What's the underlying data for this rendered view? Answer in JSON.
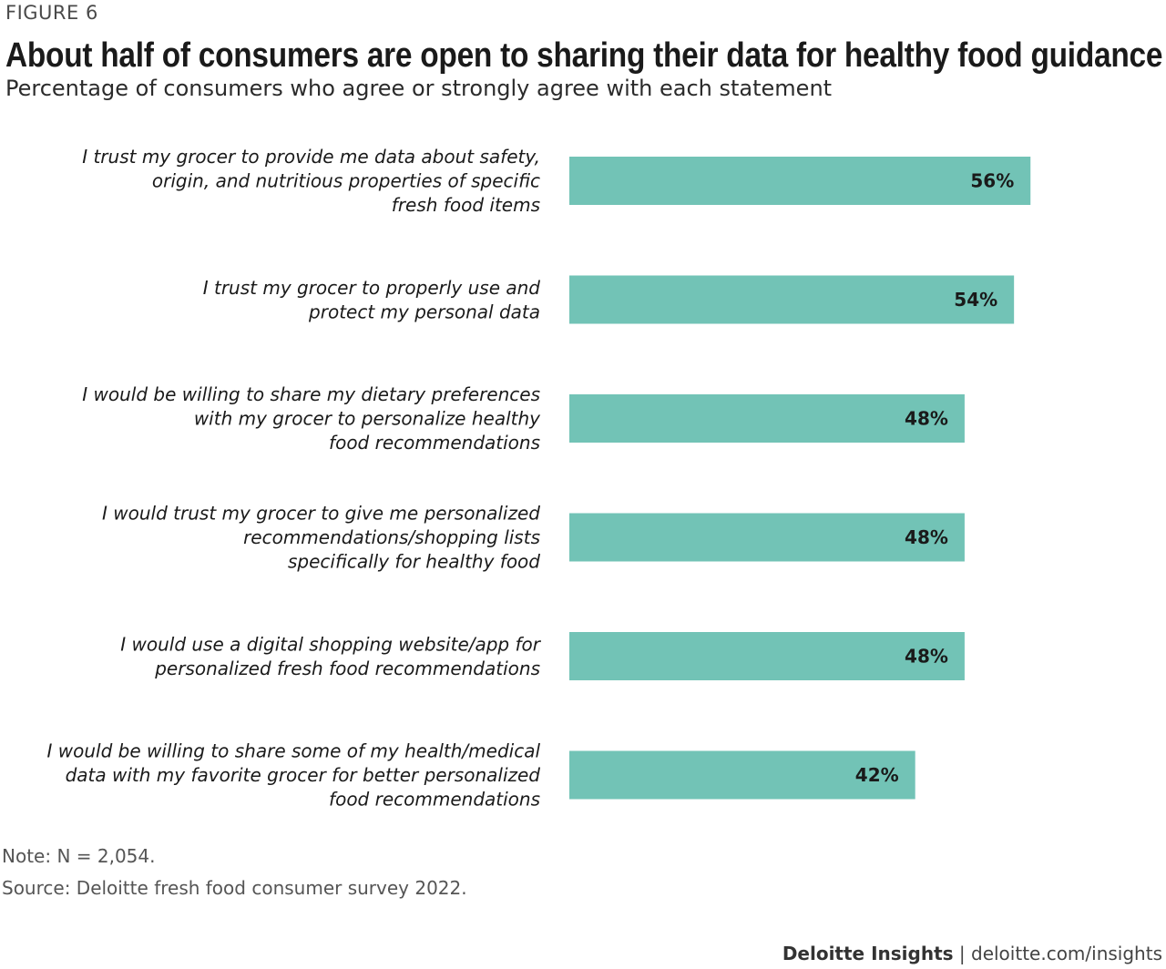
{
  "figure_label": "FIGURE 6",
  "footer": {
    "brand": "Deloitte Insights",
    "separator": " | ",
    "url": "deloitte.com/insights"
  },
  "colors": {
    "bar": "#72c3b6",
    "text": "#1a1a1a"
  },
  "chart_data": {
    "type": "bar",
    "orientation": "horizontal",
    "title": "About half of consumers are open to sharing their data for healthy food guidance",
    "subtitle": "Percentage of consumers who agree or strongly agree with each statement",
    "categories": [
      "I trust my grocer to provide me data about safety, origin, and nutritious properties of specific fresh food items",
      "I trust my grocer to properly use and protect my personal data",
      "I would be willing to share my dietary preferences with my grocer to personalize healthy food recommendations",
      "I would trust my grocer to give me personalized recommendations/shopping lists specifically for healthy food",
      "I would use a digital shopping website/app for personalized fresh food recommendations",
      "I would be willing to share some of my health/medical data with my favorite grocer for better personalized food recommendations"
    ],
    "category_lines": [
      [
        "I trust my grocer to provide me data about safety,",
        "origin, and nutritious properties of specific",
        "fresh food items"
      ],
      [
        "I trust my grocer to properly use and",
        "protect my personal data"
      ],
      [
        "I would be willing to share my dietary preferences",
        "with my grocer to personalize healthy",
        "food recommendations"
      ],
      [
        "I would trust my grocer to give me personalized",
        "recommendations/shopping lists",
        "specifically for healthy food"
      ],
      [
        "I would use a digital shopping website/app for",
        "personalized fresh food recommendations"
      ],
      [
        "I would be willing to share some of my health/medical",
        "data with my favorite grocer for better personalized",
        "food recommendations"
      ]
    ],
    "values": [
      56,
      54,
      48,
      48,
      48,
      42
    ],
    "value_labels": [
      "56%",
      "54%",
      "48%",
      "48%",
      "48%",
      "42%"
    ],
    "unit": "%",
    "xlim": [
      0,
      100
    ],
    "grid": false,
    "legend": "none",
    "note": "Note: N = 2,054.",
    "source": "Source: Deloitte fresh food consumer survey 2022."
  }
}
